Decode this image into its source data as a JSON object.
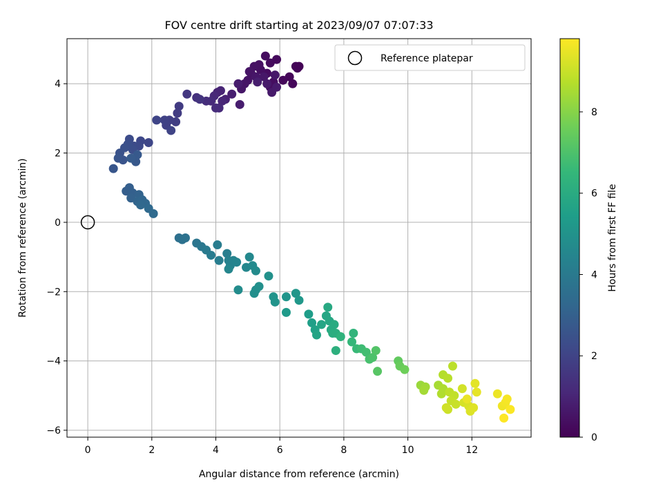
{
  "chart_data": {
    "type": "scatter",
    "title": "FOV centre drift starting at 2023/09/07 07:07:33",
    "xlabel": "Angular distance from reference (arcmin)",
    "ylabel": "Rotation from reference (arcmin)",
    "xlim": [
      -0.65,
      13.85
    ],
    "ylim": [
      -6.2,
      5.3
    ],
    "xticks": [
      0,
      2,
      4,
      6,
      8,
      10,
      12
    ],
    "yticks": [
      -6,
      -4,
      -2,
      0,
      2,
      4
    ],
    "xtick_labels": [
      "0",
      "2",
      "4",
      "6",
      "8",
      "10",
      "12"
    ],
    "ytick_labels": [
      "−6",
      "−4",
      "−2",
      "0",
      "2",
      "4"
    ],
    "grid": true,
    "legend": {
      "position": "top-right",
      "entries": [
        "Reference platepar"
      ]
    },
    "reference_point": {
      "name": "Reference platepar",
      "x": 0,
      "y": 0
    },
    "colorbar": {
      "label": "Hours from first FF file",
      "colormap": "viridis",
      "range": [
        0,
        9.8
      ],
      "ticks": [
        0,
        2,
        4,
        6,
        8
      ],
      "tick_labels": [
        "0",
        "2",
        "4",
        "6",
        "8"
      ],
      "stops": [
        "#440154",
        "#482878",
        "#3e4989",
        "#31688e",
        "#26828e",
        "#1f9e89",
        "#35b779",
        "#6ece58",
        "#b5de2b",
        "#fde725"
      ]
    },
    "points": [
      [
        6.6,
        4.5,
        0.05
      ],
      [
        6.55,
        4.45,
        0.08
      ],
      [
        6.5,
        4.5,
        0.1
      ],
      [
        6.3,
        4.2,
        0.15
      ],
      [
        6.4,
        4.0,
        0.18
      ],
      [
        6.1,
        4.1,
        0.2
      ],
      [
        5.9,
        4.7,
        0.25
      ],
      [
        5.7,
        4.6,
        0.28
      ],
      [
        5.55,
        4.8,
        0.3
      ],
      [
        5.6,
        4.3,
        0.32
      ],
      [
        5.8,
        4.05,
        0.35
      ],
      [
        5.7,
        3.9,
        0.38
      ],
      [
        5.4,
        4.4,
        0.4
      ],
      [
        5.35,
        4.55,
        0.42
      ],
      [
        5.2,
        4.5,
        0.45
      ],
      [
        5.1,
        4.3,
        0.48
      ],
      [
        5.0,
        4.1,
        0.5
      ],
      [
        5.05,
        4.35,
        0.52
      ],
      [
        4.9,
        4.0,
        0.55
      ],
      [
        4.8,
        3.85,
        0.58
      ],
      [
        5.25,
        4.2,
        0.6
      ],
      [
        5.5,
        4.2,
        0.62
      ],
      [
        5.85,
        4.25,
        0.65
      ],
      [
        5.6,
        4.0,
        0.68
      ],
      [
        5.75,
        3.75,
        0.7
      ],
      [
        5.9,
        3.9,
        0.72
      ],
      [
        4.7,
        4.0,
        0.75
      ],
      [
        4.75,
        3.4,
        0.78
      ],
      [
        5.3,
        4.05,
        0.8
      ],
      [
        4.5,
        3.7,
        0.85
      ],
      [
        4.3,
        3.55,
        0.9
      ],
      [
        4.05,
        3.75,
        0.95
      ],
      [
        4.15,
        3.8,
        1.0
      ],
      [
        4.2,
        3.5,
        1.05
      ],
      [
        3.95,
        3.65,
        1.1
      ],
      [
        4.1,
        3.3,
        1.15
      ],
      [
        3.85,
        3.5,
        1.2
      ],
      [
        4.0,
        3.3,
        1.25
      ],
      [
        3.7,
        3.5,
        1.3
      ],
      [
        3.4,
        3.6,
        1.4
      ],
      [
        3.5,
        3.55,
        1.5
      ],
      [
        3.1,
        3.7,
        1.6
      ],
      [
        2.85,
        3.35,
        1.7
      ],
      [
        2.8,
        3.15,
        1.75
      ],
      [
        2.75,
        2.9,
        1.8
      ],
      [
        2.55,
        2.95,
        1.85
      ],
      [
        2.45,
        2.8,
        1.9
      ],
      [
        2.4,
        2.95,
        1.95
      ],
      [
        2.6,
        2.65,
        2.0
      ],
      [
        2.15,
        2.95,
        2.05
      ],
      [
        1.9,
        2.3,
        2.1
      ],
      [
        1.65,
        2.35,
        2.15
      ],
      [
        1.6,
        2.2,
        2.2
      ],
      [
        1.45,
        2.2,
        2.25
      ],
      [
        1.3,
        2.4,
        2.3
      ],
      [
        1.4,
        2.1,
        2.35
      ],
      [
        1.25,
        2.25,
        2.4
      ],
      [
        1.15,
        2.15,
        2.45
      ],
      [
        1.0,
        2.0,
        2.5
      ],
      [
        1.1,
        1.8,
        2.55
      ],
      [
        0.95,
        1.85,
        2.6
      ],
      [
        0.8,
        1.55,
        2.65
      ],
      [
        1.5,
        1.75,
        2.7
      ],
      [
        1.55,
        1.95,
        2.75
      ],
      [
        1.35,
        1.85,
        2.8
      ],
      [
        1.2,
        0.9,
        2.9
      ],
      [
        1.3,
        1.0,
        2.95
      ],
      [
        1.4,
        0.85,
        3.0
      ],
      [
        1.35,
        0.7,
        3.05
      ],
      [
        1.6,
        0.8,
        3.1
      ],
      [
        1.55,
        0.6,
        3.15
      ],
      [
        1.7,
        0.65,
        3.2
      ],
      [
        1.8,
        0.55,
        3.25
      ],
      [
        1.65,
        0.5,
        3.3
      ],
      [
        1.9,
        0.4,
        3.35
      ],
      [
        2.05,
        0.25,
        3.4
      ],
      [
        2.85,
        -0.45,
        3.6
      ],
      [
        2.95,
        -0.5,
        3.65
      ],
      [
        3.05,
        -0.45,
        3.7
      ],
      [
        3.4,
        -0.6,
        3.8
      ],
      [
        3.55,
        -0.7,
        3.9
      ],
      [
        3.7,
        -0.8,
        4.0
      ],
      [
        3.85,
        -0.95,
        4.05
      ],
      [
        4.05,
        -0.65,
        4.1
      ],
      [
        4.1,
        -1.1,
        4.15
      ],
      [
        4.35,
        -0.9,
        4.2
      ],
      [
        4.4,
        -1.1,
        4.3
      ],
      [
        4.45,
        -1.25,
        4.35
      ],
      [
        4.55,
        -1.1,
        4.4
      ],
      [
        4.65,
        -1.15,
        4.45
      ],
      [
        4.4,
        -1.35,
        4.5
      ],
      [
        4.95,
        -1.3,
        4.55
      ],
      [
        5.05,
        -1.0,
        4.6
      ],
      [
        5.15,
        -1.25,
        4.65
      ],
      [
        5.25,
        -1.4,
        4.7
      ],
      [
        4.7,
        -1.95,
        4.75
      ],
      [
        5.25,
        -1.95,
        4.8
      ],
      [
        5.2,
        -2.05,
        4.85
      ],
      [
        5.35,
        -1.85,
        4.9
      ],
      [
        5.65,
        -1.55,
        4.95
      ],
      [
        5.8,
        -2.15,
        5.0
      ],
      [
        5.85,
        -2.3,
        5.05
      ],
      [
        6.2,
        -2.15,
        5.1
      ],
      [
        6.5,
        -2.05,
        5.15
      ],
      [
        6.6,
        -2.25,
        5.2
      ],
      [
        6.2,
        -2.6,
        5.3
      ],
      [
        6.9,
        -2.65,
        5.4
      ],
      [
        7.0,
        -2.9,
        5.5
      ],
      [
        7.1,
        -3.1,
        5.6
      ],
      [
        7.15,
        -3.25,
        5.7
      ],
      [
        7.3,
        -2.95,
        5.75
      ],
      [
        7.45,
        -2.7,
        5.8
      ],
      [
        7.55,
        -2.85,
        5.85
      ],
      [
        7.5,
        -2.45,
        5.9
      ],
      [
        7.6,
        -3.1,
        5.95
      ],
      [
        7.7,
        -2.95,
        6.0
      ],
      [
        7.65,
        -3.2,
        6.05
      ],
      [
        7.75,
        -3.2,
        6.1
      ],
      [
        7.75,
        -3.7,
        6.2
      ],
      [
        7.9,
        -3.3,
        6.3
      ],
      [
        8.3,
        -3.2,
        6.4
      ],
      [
        8.25,
        -3.45,
        6.5
      ],
      [
        8.4,
        -3.65,
        6.6
      ],
      [
        8.55,
        -3.65,
        6.7
      ],
      [
        8.7,
        -3.75,
        6.8
      ],
      [
        8.8,
        -3.95,
        6.9
      ],
      [
        8.9,
        -3.9,
        7.0
      ],
      [
        9.0,
        -3.7,
        7.1
      ],
      [
        9.05,
        -4.3,
        7.2
      ],
      [
        9.7,
        -4.0,
        7.4
      ],
      [
        9.75,
        -4.15,
        7.5
      ],
      [
        9.9,
        -4.25,
        7.6
      ],
      [
        10.4,
        -4.7,
        8.3
      ],
      [
        10.55,
        -4.75,
        8.4
      ],
      [
        10.5,
        -4.85,
        8.45
      ],
      [
        10.95,
        -4.7,
        8.5
      ],
      [
        11.1,
        -4.8,
        8.6
      ],
      [
        11.05,
        -4.95,
        8.65
      ],
      [
        11.1,
        -4.4,
        8.7
      ],
      [
        11.25,
        -4.5,
        8.75
      ],
      [
        11.4,
        -4.15,
        8.8
      ],
      [
        11.3,
        -4.9,
        8.85
      ],
      [
        11.45,
        -5.0,
        8.9
      ],
      [
        11.35,
        -5.15,
        8.95
      ],
      [
        11.5,
        -5.25,
        9.0
      ],
      [
        11.25,
        -5.4,
        9.05
      ],
      [
        11.2,
        -5.35,
        9.1
      ],
      [
        11.7,
        -4.8,
        9.15
      ],
      [
        11.75,
        -5.2,
        9.2
      ],
      [
        11.9,
        -5.3,
        9.25
      ],
      [
        11.95,
        -5.45,
        9.3
      ],
      [
        12.05,
        -5.35,
        9.35
      ],
      [
        12.1,
        -4.65,
        9.4
      ],
      [
        12.15,
        -4.9,
        9.45
      ],
      [
        11.85,
        -5.1,
        9.5
      ],
      [
        12.8,
        -4.95,
        9.55
      ],
      [
        12.95,
        -5.3,
        9.6
      ],
      [
        13.05,
        -5.2,
        9.65
      ],
      [
        13.1,
        -5.1,
        9.7
      ],
      [
        13.2,
        -5.4,
        9.75
      ],
      [
        13.0,
        -5.65,
        9.8
      ]
    ]
  }
}
